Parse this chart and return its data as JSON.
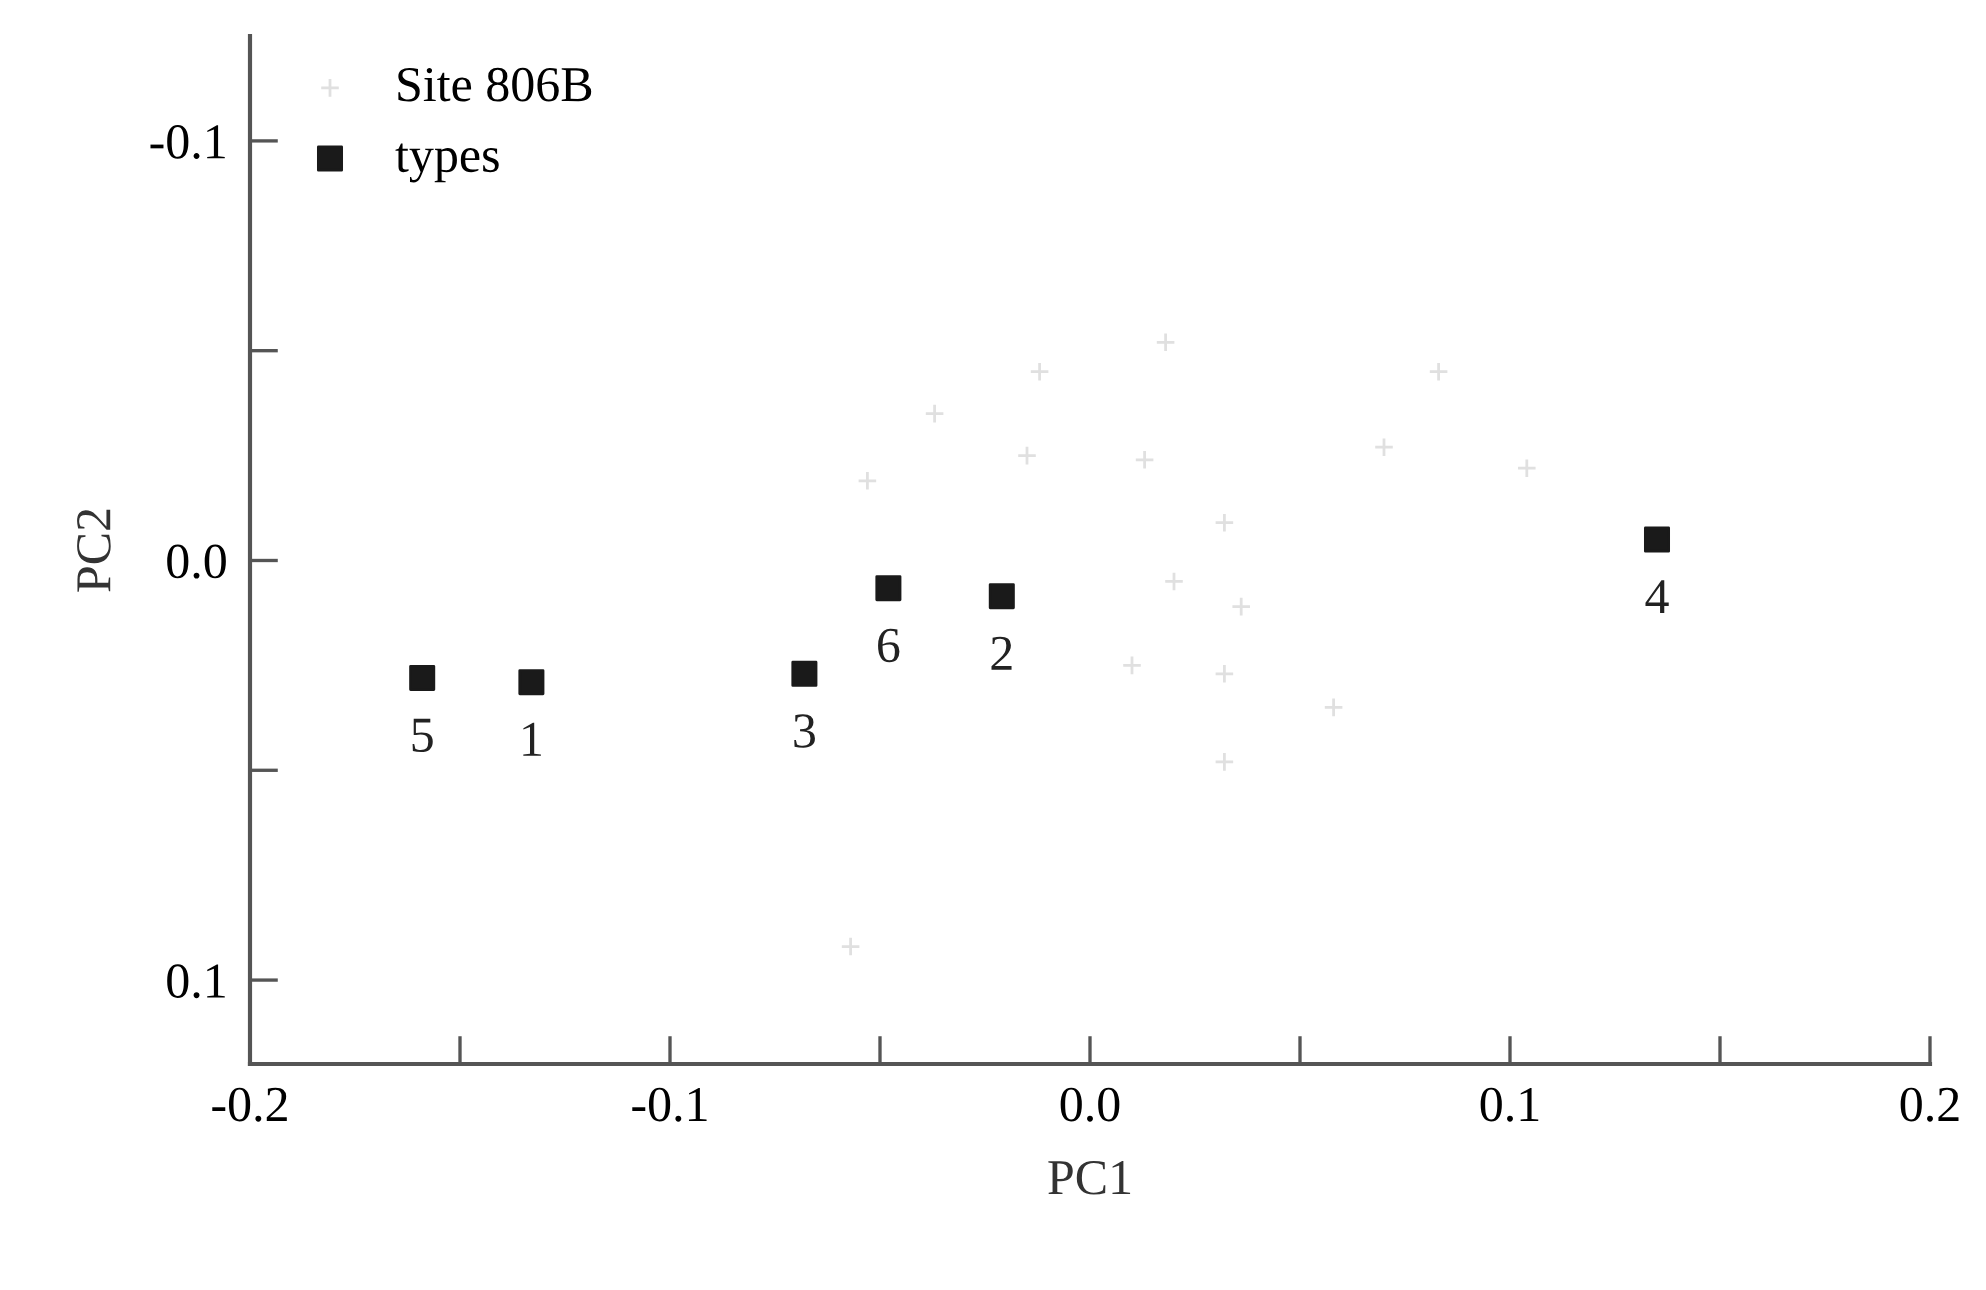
{
  "chart_data": {
    "type": "scatter",
    "xlabel": "PC1",
    "ylabel": "PC2",
    "xlim": [
      -0.2,
      0.2
    ],
    "ylim": [
      0.12,
      -0.125
    ],
    "xticks": [
      -0.2,
      {
        "value": -0.15,
        "label": null
      },
      -0.1,
      {
        "value": -0.05,
        "label": null
      },
      {
        "value": 0,
        "label": "0.0"
      },
      {
        "value": 0.05,
        "label": null
      },
      0.1,
      {
        "value": 0.15,
        "label": null
      },
      0.2
    ],
    "yticks": [
      -0.1,
      {
        "value": -0.05,
        "label": null
      },
      {
        "value": 0,
        "label": "0.0"
      },
      {
        "value": 0.05,
        "label": null
      },
      0.1
    ],
    "grid": false,
    "legend": "top left",
    "series": [
      {
        "name": "Site 806B",
        "color": "#e0e0e0",
        "marker": "cross",
        "x": [
          -0.012,
          0.018,
          0.083,
          -0.037,
          -0.015,
          0.013,
          0.07,
          0.104,
          -0.053,
          0.032,
          0.02,
          0.036,
          0.01,
          0.032,
          0.058,
          0.032,
          -0.057
        ],
        "values": [
          -0.045,
          -0.052,
          -0.045,
          -0.035,
          -0.025,
          -0.024,
          -0.027,
          -0.022,
          -0.019,
          -0.009,
          0.005,
          0.011,
          0.025,
          0.027,
          0.035,
          0.048,
          0.092
        ]
      },
      {
        "name": "types",
        "color": "#1a1a1a",
        "marker": "square",
        "x": [
          -0.159,
          -0.133,
          -0.068,
          -0.048,
          -0.021,
          0.135
        ],
        "values": [
          0.028,
          0.029,
          0.027,
          0.0066,
          0.0085,
          -0.005
        ]
      }
    ],
    "annotations": [
      {
        "text": "5",
        "x": -0.159,
        "y": 0.028
      },
      {
        "text": "1",
        "x": -0.133,
        "y": 0.029
      },
      {
        "text": "3",
        "x": -0.068,
        "y": 0.027
      },
      {
        "text": "6",
        "x": -0.048,
        "y": 0.0066
      },
      {
        "text": "2",
        "x": -0.021,
        "y": 0.0085
      },
      {
        "text": "4",
        "x": 0.135,
        "y": -0.005
      }
    ]
  }
}
